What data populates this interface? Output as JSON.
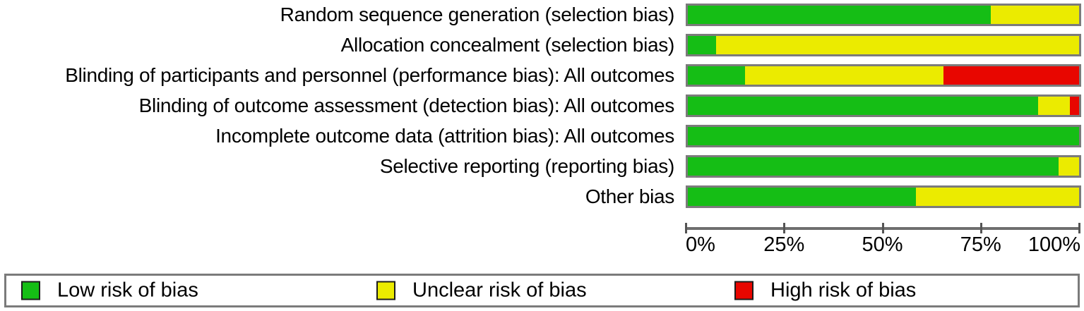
{
  "colors": {
    "low": "#15BE15",
    "unclear": "#EBEB00",
    "high": "#E80600",
    "bar_border": "#7B7B7B",
    "axis_line": "#6E6E6E",
    "tick": "#545454",
    "legend_border": "#7B7B7B",
    "text": "#000000"
  },
  "chart_data": {
    "type": "bar",
    "stacked": true,
    "orientation": "horizontal",
    "title": "",
    "xlabel": "",
    "ylabel": "",
    "xlim": [
      0,
      100
    ],
    "grid": false,
    "legend_position": "bottom",
    "categories": [
      "Random sequence generation (selection bias)",
      "Allocation concealment (selection bias)",
      "Blinding of participants and personnel (performance bias): All outcomes",
      "Blinding of outcome assessment (detection bias): All outcomes",
      "Incomplete outcome data (attrition bias): All outcomes",
      "Selective reporting (reporting bias)",
      "Other bias"
    ],
    "series": [
      {
        "name": "Low risk of bias",
        "color_key": "low",
        "values": [
          77.5,
          7.2,
          14.6,
          89.5,
          100,
          94.8,
          58.3
        ]
      },
      {
        "name": "Unclear risk of bias",
        "color_key": "unclear",
        "values": [
          22.5,
          92.8,
          50.7,
          8.2,
          0,
          5.2,
          41.7
        ]
      },
      {
        "name": "High risk of bias",
        "color_key": "high",
        "values": [
          0,
          0,
          34.7,
          2.3,
          0,
          0,
          0
        ]
      }
    ],
    "axis_ticks": [
      {
        "label": "0%",
        "pos": 0,
        "align": "left"
      },
      {
        "label": "25%",
        "pos": 25,
        "align": "center"
      },
      {
        "label": "50%",
        "pos": 50,
        "align": "center"
      },
      {
        "label": "75%",
        "pos": 75,
        "align": "center"
      },
      {
        "label": "100%",
        "pos": 100,
        "align": "right"
      }
    ]
  },
  "legend": {
    "entries": [
      {
        "label": "Low risk of bias",
        "color_key": "low"
      },
      {
        "label": "Unclear risk of bias",
        "color_key": "unclear"
      },
      {
        "label": "High risk of bias",
        "color_key": "high"
      }
    ]
  }
}
